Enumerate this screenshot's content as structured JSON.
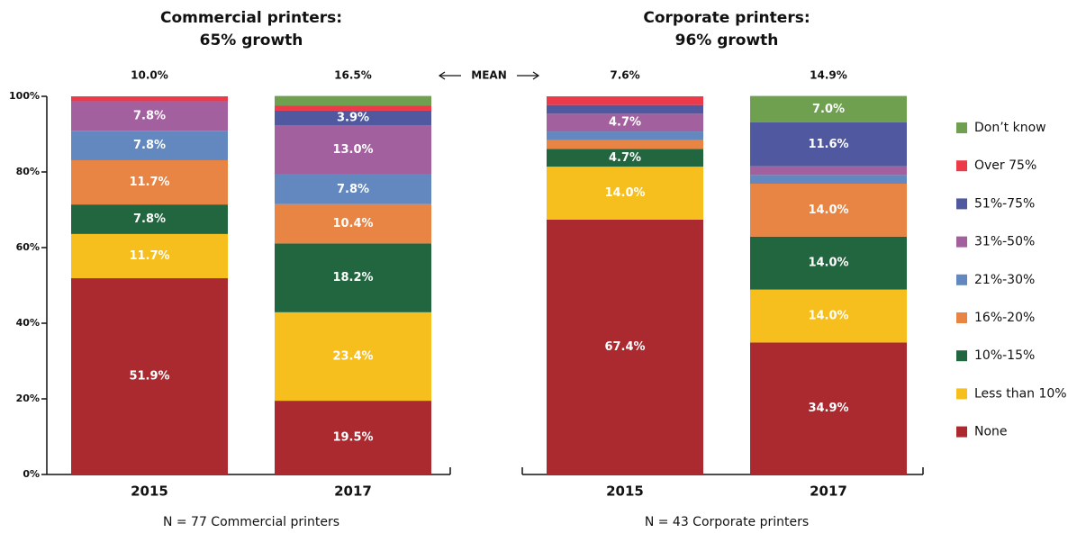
{
  "annotation": "MEAN",
  "chart_data": [
    {
      "type": "stacked_bar",
      "title": [
        "Commercial printers:",
        "65% growth"
      ],
      "categories": [
        "2015",
        "2017"
      ],
      "means": [
        "10.0%",
        "16.5%"
      ],
      "note": "N = 77 Commercial printers",
      "ylim": [
        0,
        100
      ],
      "yticks": [
        {
          "value": 0,
          "label": "0%"
        },
        {
          "value": 20,
          "label": "20%"
        },
        {
          "value": 40,
          "label": "40%"
        },
        {
          "value": 60,
          "label": "60%"
        },
        {
          "value": 80,
          "label": "80%"
        },
        {
          "value": 100,
          "label": "100%"
        }
      ],
      "series": [
        {
          "color": "#ab2a2f",
          "values": [
            51.9,
            19.5
          ],
          "value_labels": [
            "51.9%",
            "19.5%"
          ]
        },
        {
          "color": "#f7bf1e",
          "values": [
            11.7,
            23.4
          ],
          "value_labels": [
            "11.7%",
            "23.4%"
          ]
        },
        {
          "color": "#22663f",
          "values": [
            7.8,
            18.2
          ],
          "value_labels": [
            "7.8%",
            "18.2%"
          ]
        },
        {
          "color": "#e98544",
          "values": [
            11.7,
            10.4
          ],
          "value_labels": [
            "11.7%",
            "10.4%"
          ]
        },
        {
          "color": "#6288bf",
          "values": [
            7.8,
            7.8
          ],
          "value_labels": [
            "7.8%",
            "7.8%"
          ]
        },
        {
          "color": "#a3609f",
          "values": [
            7.8,
            13.0
          ],
          "value_labels": [
            "7.8%",
            "13.0%"
          ]
        },
        {
          "color": "#5059a0",
          "values": [
            0,
            3.9
          ],
          "value_labels": [
            null,
            "3.9%"
          ]
        },
        {
          "color": "#ec3a4a",
          "values": [
            1.3,
            1.3
          ],
          "value_labels": [
            null,
            null
          ]
        },
        {
          "color": "#6ea050",
          "values": [
            0,
            2.6
          ],
          "value_labels": [
            null,
            null
          ]
        }
      ]
    },
    {
      "type": "stacked_bar",
      "title": [
        "Corporate printers:",
        "96% growth"
      ],
      "categories": [
        "2015",
        "2017"
      ],
      "means": [
        "7.6%",
        "14.9%"
      ],
      "note": "N = 43 Corporate printers",
      "ylim": [
        0,
        100
      ],
      "legend": "right",
      "series": [
        {
          "name": "None",
          "color": "#ab2a2f",
          "values": [
            67.4,
            34.9
          ],
          "value_labels": [
            "67.4%",
            "34.9%"
          ]
        },
        {
          "name": "Less than 10%",
          "color": "#f7bf1e",
          "values": [
            14.0,
            14.0
          ],
          "value_labels": [
            "14.0%",
            "14.0%"
          ]
        },
        {
          "name": "10%-15%",
          "color": "#22663f",
          "values": [
            4.7,
            14.0
          ],
          "value_labels": [
            "4.7%",
            "14.0%"
          ]
        },
        {
          "name": "16%-20%",
          "color": "#e98544",
          "values": [
            2.3,
            14.0
          ],
          "value_labels": [
            null,
            "14.0%"
          ]
        },
        {
          "name": "21%-30%",
          "color": "#6288bf",
          "values": [
            2.3,
            2.3
          ],
          "value_labels": [
            null,
            null
          ]
        },
        {
          "name": "31%-50%",
          "color": "#a3609f",
          "values": [
            4.7,
            2.3
          ],
          "value_labels": [
            "4.7%",
            null
          ]
        },
        {
          "name": "51%-75%",
          "color": "#5059a0",
          "values": [
            2.3,
            11.6
          ],
          "value_labels": [
            null,
            "11.6%"
          ]
        },
        {
          "name": "Over 75%",
          "color": "#ec3a4a",
          "values": [
            2.3,
            0
          ],
          "value_labels": [
            null,
            null
          ]
        },
        {
          "name": "Don’t know",
          "color": "#6ea050",
          "values": [
            0,
            7.0
          ],
          "value_labels": [
            null,
            "7.0%"
          ]
        }
      ]
    }
  ]
}
